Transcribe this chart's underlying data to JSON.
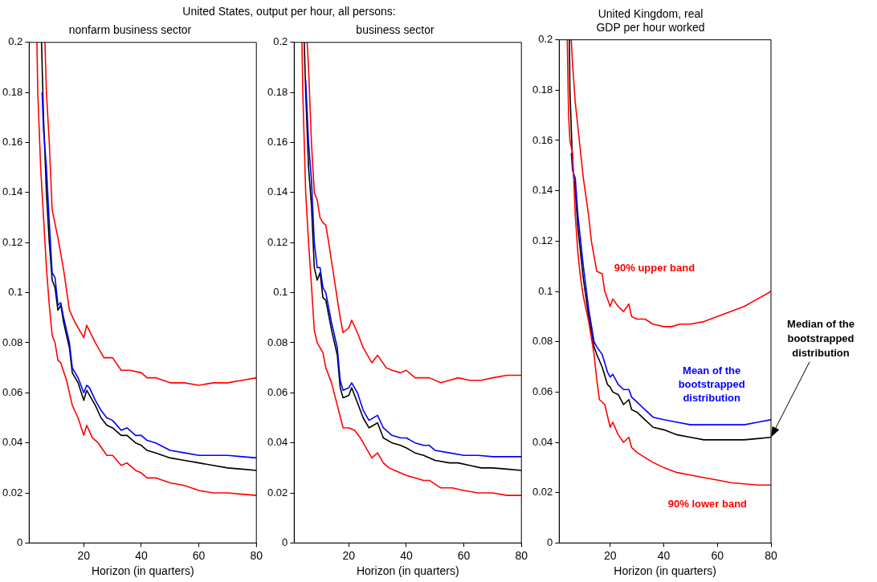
{
  "chart_data": [
    {
      "type": "line",
      "title": "United States, output per hour, all persons:",
      "subtitle": "nonfarm business sector",
      "xlabel": "Horizon (in quarters)",
      "xlim": [
        1,
        80
      ],
      "xticks": [
        20,
        40,
        60,
        80
      ],
      "ylim": [
        0,
        0.2
      ],
      "yticks": [
        0,
        0.02,
        0.04,
        0.06,
        0.08,
        0.1,
        0.12,
        0.14,
        0.16,
        0.18,
        0.2
      ],
      "grid": false,
      "legend": false,
      "marker": "none",
      "line_style": "solid",
      "series": [
        {
          "color": "#ff0000",
          "x": [
            6.5,
            7,
            8,
            9,
            11,
            13,
            15,
            17,
            20,
            21,
            24,
            27,
            30,
            33,
            36,
            40,
            42,
            45,
            50,
            55,
            60,
            65,
            70,
            75,
            80
          ],
          "values": [
            0.2,
            0.18,
            0.16,
            0.133,
            0.122,
            0.109,
            0.093,
            0.088,
            0.082,
            0.087,
            0.08,
            0.074,
            0.074,
            0.069,
            0.069,
            0.068,
            0.066,
            0.066,
            0.064,
            0.064,
            0.063,
            0.064,
            0.064,
            0.065,
            0.066
          ]
        },
        {
          "color": "#ff0000",
          "x": [
            3.7,
            4,
            5,
            6,
            7,
            8,
            9,
            10,
            11,
            12,
            14,
            16,
            18,
            20,
            21,
            23,
            25,
            28,
            30,
            33,
            35,
            38,
            40,
            42,
            45,
            50,
            55,
            60,
            65,
            70,
            75,
            80
          ],
          "values": [
            0.2,
            0.18,
            0.15,
            0.13,
            0.11,
            0.095,
            0.083,
            0.08,
            0.073,
            0.072,
            0.065,
            0.055,
            0.05,
            0.043,
            0.047,
            0.042,
            0.04,
            0.035,
            0.035,
            0.031,
            0.032,
            0.029,
            0.028,
            0.026,
            0.026,
            0.024,
            0.023,
            0.021,
            0.02,
            0.02,
            0.0195,
            0.019
          ]
        },
        {
          "color": "#0000ff",
          "x": [
            5.5,
            6,
            7,
            8,
            9,
            10,
            11,
            12,
            13,
            15,
            16,
            18,
            20,
            21,
            22,
            24,
            26,
            28,
            30,
            33,
            35,
            38,
            40,
            42,
            45,
            50,
            55,
            60,
            65,
            70,
            75,
            80
          ],
          "values": [
            0.18,
            0.165,
            0.15,
            0.128,
            0.108,
            0.106,
            0.095,
            0.096,
            0.09,
            0.08,
            0.07,
            0.066,
            0.06,
            0.063,
            0.062,
            0.057,
            0.053,
            0.05,
            0.049,
            0.045,
            0.046,
            0.043,
            0.043,
            0.041,
            0.04,
            0.037,
            0.036,
            0.035,
            0.035,
            0.035,
            0.0345,
            0.034
          ]
        },
        {
          "color": "#000000",
          "x": [
            5.3,
            6,
            7,
            8,
            9,
            10,
            11,
            12,
            13,
            15,
            16,
            18,
            20,
            21,
            22,
            24,
            26,
            28,
            30,
            33,
            35,
            38,
            40,
            42,
            45,
            50,
            55,
            60,
            65,
            70,
            75,
            80
          ],
          "values": [
            0.2,
            0.17,
            0.14,
            0.12,
            0.105,
            0.102,
            0.093,
            0.095,
            0.088,
            0.078,
            0.068,
            0.064,
            0.057,
            0.061,
            0.059,
            0.055,
            0.05,
            0.047,
            0.046,
            0.043,
            0.043,
            0.04,
            0.039,
            0.037,
            0.036,
            0.034,
            0.033,
            0.032,
            0.031,
            0.03,
            0.0295,
            0.029
          ]
        }
      ]
    },
    {
      "type": "line",
      "subtitle": "business sector",
      "xlabel": "Horizon (in quarters)",
      "xlim": [
        1,
        80
      ],
      "xticks": [
        20,
        40,
        60,
        80
      ],
      "ylim": [
        0,
        0.2
      ],
      "yticks": [
        0,
        0.02,
        0.04,
        0.06,
        0.08,
        0.1,
        0.12,
        0.14,
        0.16,
        0.18,
        0.2
      ],
      "grid": false,
      "legend": false,
      "marker": "none",
      "line_style": "solid",
      "series": [
        {
          "color": "#ff0000",
          "x": [
            5.5,
            6,
            7,
            8,
            9,
            10,
            11,
            12,
            13,
            15,
            17,
            18,
            20,
            21,
            23,
            25,
            28,
            30,
            33,
            35,
            38,
            40,
            43,
            45,
            48,
            52,
            55,
            58,
            62,
            66,
            70,
            75,
            80
          ],
          "values": [
            0.2,
            0.19,
            0.16,
            0.14,
            0.137,
            0.13,
            0.128,
            0.127,
            0.12,
            0.105,
            0.09,
            0.084,
            0.086,
            0.089,
            0.084,
            0.078,
            0.072,
            0.075,
            0.07,
            0.069,
            0.068,
            0.069,
            0.066,
            0.066,
            0.066,
            0.064,
            0.065,
            0.066,
            0.065,
            0.065,
            0.066,
            0.067,
            0.067
          ]
        },
        {
          "color": "#ff0000",
          "x": [
            3.7,
            4,
            5,
            6,
            7,
            8,
            9,
            10,
            11,
            12,
            14,
            16,
            18,
            20,
            22,
            24,
            26,
            28,
            30,
            32,
            34,
            36,
            40,
            43,
            46,
            48,
            52,
            56,
            60,
            65,
            70,
            75,
            80
          ],
          "values": [
            0.2,
            0.18,
            0.14,
            0.12,
            0.103,
            0.085,
            0.08,
            0.078,
            0.076,
            0.07,
            0.064,
            0.055,
            0.046,
            0.046,
            0.045,
            0.042,
            0.038,
            0.034,
            0.036,
            0.032,
            0.03,
            0.029,
            0.027,
            0.026,
            0.025,
            0.025,
            0.022,
            0.022,
            0.021,
            0.02,
            0.02,
            0.019,
            0.019
          ]
        },
        {
          "color": "#0000ff",
          "x": [
            5,
            6,
            7,
            8,
            9,
            10,
            11,
            12,
            14,
            16,
            17,
            18,
            20,
            21,
            23,
            25,
            27,
            30,
            32,
            35,
            38,
            40,
            43,
            46,
            48,
            50,
            55,
            60,
            65,
            70,
            75,
            80
          ],
          "values": [
            0.185,
            0.16,
            0.145,
            0.12,
            0.11,
            0.11,
            0.102,
            0.1,
            0.088,
            0.078,
            0.065,
            0.061,
            0.062,
            0.064,
            0.06,
            0.053,
            0.049,
            0.051,
            0.046,
            0.043,
            0.042,
            0.042,
            0.04,
            0.039,
            0.039,
            0.037,
            0.036,
            0.035,
            0.035,
            0.0345,
            0.0345,
            0.0345
          ]
        },
        {
          "color": "#000000",
          "x": [
            4.5,
            5,
            6,
            7,
            8,
            9,
            10,
            11,
            12,
            14,
            16,
            17,
            18,
            20,
            21,
            23,
            25,
            27,
            30,
            32,
            35,
            38,
            40,
            43,
            46,
            50,
            55,
            58,
            62,
            66,
            70,
            75,
            80
          ],
          "values": [
            0.2,
            0.18,
            0.15,
            0.135,
            0.11,
            0.105,
            0.108,
            0.098,
            0.097,
            0.085,
            0.075,
            0.062,
            0.058,
            0.059,
            0.062,
            0.056,
            0.05,
            0.046,
            0.048,
            0.042,
            0.04,
            0.039,
            0.038,
            0.036,
            0.035,
            0.033,
            0.032,
            0.032,
            0.031,
            0.03,
            0.03,
            0.0295,
            0.029
          ]
        }
      ]
    },
    {
      "type": "line",
      "subtitle": "United Kingdom, real\nGDP per hour worked",
      "xlabel": "Horizon (in quarters)",
      "xlim": [
        1,
        80
      ],
      "xticks": [
        20,
        40,
        60,
        80
      ],
      "ylim": [
        0,
        0.2
      ],
      "yticks": [
        0,
        0.02,
        0.04,
        0.06,
        0.08,
        0.1,
        0.12,
        0.14,
        0.16,
        0.18,
        0.2
      ],
      "grid": false,
      "legend": false,
      "marker": "none",
      "line_style": "solid",
      "annotations": [
        "90% upper band",
        "Mean of the\nbootstrapped\ndistribution",
        "90% lower band",
        {
          "text": "Median of the\nbootstrapped\ndistribution",
          "x": 80,
          "y": 0.042
        }
      ],
      "series": [
        {
          "color": "#ff0000",
          "x": [
            5.5,
            6,
            7,
            8,
            9,
            10,
            12,
            13,
            15,
            17,
            18,
            20,
            21,
            23,
            25,
            27,
            28,
            30,
            33,
            36,
            40,
            43,
            46,
            50,
            55,
            60,
            65,
            70,
            75,
            80
          ],
          "values": [
            0.2,
            0.19,
            0.175,
            0.165,
            0.155,
            0.145,
            0.13,
            0.12,
            0.108,
            0.107,
            0.1,
            0.094,
            0.097,
            0.094,
            0.092,
            0.095,
            0.09,
            0.089,
            0.089,
            0.087,
            0.086,
            0.086,
            0.087,
            0.087,
            0.088,
            0.09,
            0.092,
            0.094,
            0.097,
            0.1
          ]
        },
        {
          "color": "#ff0000",
          "x": [
            4,
            4.5,
            5,
            6,
            7,
            8,
            9,
            10,
            12,
            14,
            15,
            16,
            18,
            20,
            21,
            23,
            25,
            27,
            28,
            30,
            33,
            36,
            40,
            45,
            50,
            55,
            60,
            65,
            70,
            75,
            80
          ],
          "values": [
            0.2,
            0.17,
            0.16,
            0.155,
            0.13,
            0.115,
            0.105,
            0.098,
            0.088,
            0.075,
            0.065,
            0.057,
            0.055,
            0.046,
            0.048,
            0.043,
            0.04,
            0.042,
            0.038,
            0.036,
            0.034,
            0.032,
            0.03,
            0.028,
            0.027,
            0.026,
            0.025,
            0.024,
            0.0235,
            0.023,
            0.023
          ]
        },
        {
          "color": "#0000ff",
          "x": [
            5.5,
            6,
            7,
            8,
            10,
            12,
            14,
            15,
            17,
            19,
            20,
            21,
            23,
            25,
            27,
            28,
            30,
            33,
            36,
            40,
            45,
            50,
            55,
            60,
            65,
            70,
            75,
            80
          ],
          "values": [
            0.155,
            0.148,
            0.145,
            0.13,
            0.11,
            0.093,
            0.08,
            0.078,
            0.075,
            0.068,
            0.066,
            0.067,
            0.063,
            0.061,
            0.061,
            0.058,
            0.056,
            0.053,
            0.05,
            0.049,
            0.048,
            0.047,
            0.047,
            0.047,
            0.047,
            0.047,
            0.048,
            0.049
          ]
        },
        {
          "color": "#000000",
          "x": [
            4.8,
            5,
            6,
            7,
            8,
            10,
            12,
            14,
            15,
            17,
            19,
            20,
            21,
            23,
            25,
            27,
            28,
            30,
            33,
            36,
            40,
            45,
            50,
            55,
            60,
            65,
            70,
            75,
            80
          ],
          "values": [
            0.2,
            0.18,
            0.15,
            0.14,
            0.125,
            0.105,
            0.09,
            0.078,
            0.075,
            0.07,
            0.063,
            0.062,
            0.06,
            0.059,
            0.055,
            0.057,
            0.053,
            0.052,
            0.049,
            0.046,
            0.045,
            0.043,
            0.042,
            0.041,
            0.041,
            0.041,
            0.041,
            0.0415,
            0.042
          ]
        }
      ]
    }
  ]
}
